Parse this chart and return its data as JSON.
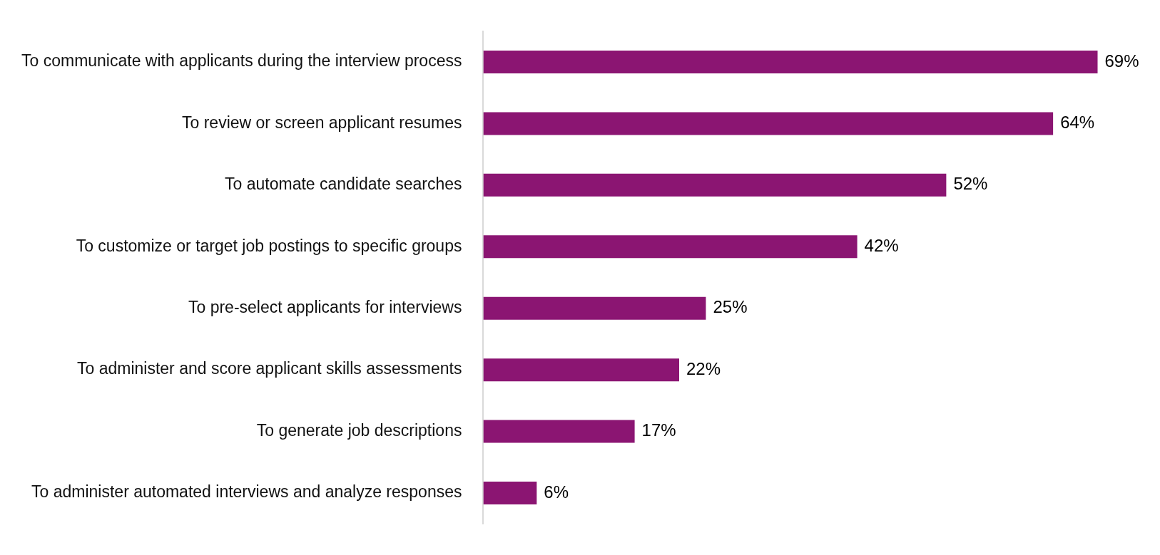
{
  "chart_data": {
    "type": "bar",
    "orientation": "horizontal",
    "categories": [
      "To communicate with applicants during the interview process",
      "To review or screen applicant resumes",
      "To automate candidate searches",
      "To customize or target job postings to specific groups",
      "To pre-select applicants for interviews",
      "To administer and score applicant skills assessments",
      "To generate job descriptions",
      "To administer automated interviews and analyze responses"
    ],
    "values": [
      69,
      64,
      52,
      42,
      25,
      22,
      17,
      6
    ],
    "value_labels": [
      "69%",
      "64%",
      "52%",
      "42%",
      "25%",
      "22%",
      "17%",
      "6%"
    ],
    "color": "#8b1572",
    "grid": false,
    "legend": false,
    "tick_labels": "y"
  }
}
